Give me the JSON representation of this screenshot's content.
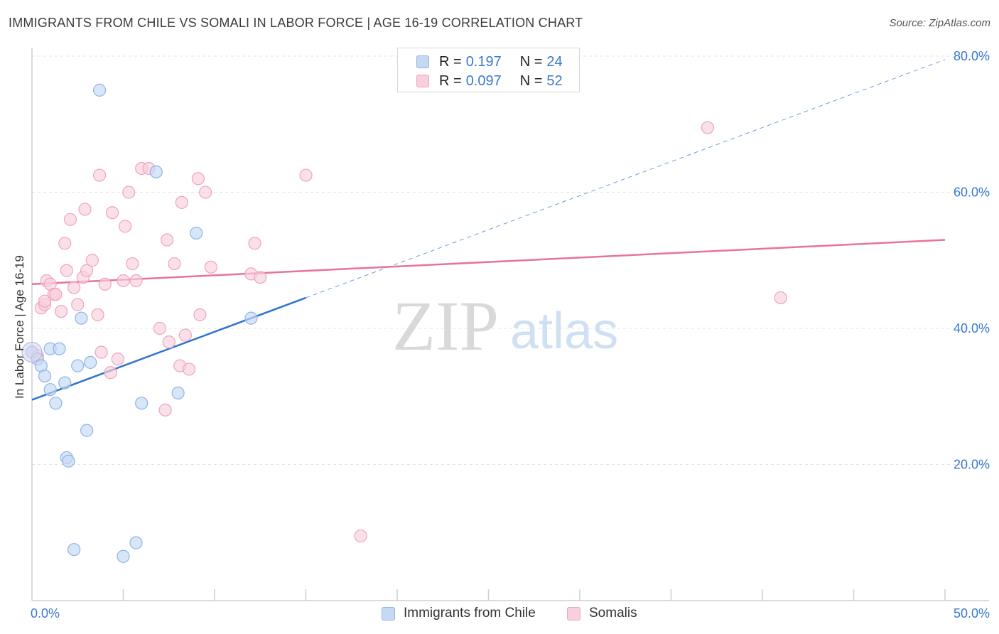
{
  "title": "IMMIGRANTS FROM CHILE VS SOMALI IN LABOR FORCE | AGE 16-19 CORRELATION CHART",
  "source": "Source: ZipAtlas.com",
  "watermark": {
    "zip": "ZIP",
    "atlas": "atlas"
  },
  "legend_top": [
    {
      "r_key": "R =",
      "r_value": "0.197",
      "n_key": "N =",
      "n_value": "24"
    },
    {
      "r_key": "R =",
      "r_value": "0.097",
      "n_key": "N =",
      "n_value": "52"
    }
  ],
  "chart_data": {
    "type": "scatter",
    "title": "IMMIGRANTS FROM CHILE VS SOMALI IN LABOR FORCE | AGE 16-19 CORRELATION CHART",
    "xlabel": "",
    "ylabel": "In Labor Force | Age 16-19",
    "xlim": [
      0,
      50
    ],
    "ylim": [
      0,
      80
    ],
    "x_tick_labels": [
      "0.0%",
      "50.0%"
    ],
    "y_ticks": [
      20,
      40,
      60,
      80
    ],
    "y_tick_labels": [
      "20.0%",
      "40.0%",
      "60.0%",
      "80.0%"
    ],
    "grid": true,
    "legend_position": "bottom-center",
    "series": [
      {
        "name": "Immigrants from Chile",
        "color": "#8db4e8",
        "fill": "#c5d9f3",
        "line_color": "#2f74d0",
        "r": 0.197,
        "n": 24,
        "trend": {
          "x0": 0,
          "y0": 29.5,
          "x1": 15,
          "y1": 44.5,
          "extended_to_x": 50,
          "extended_y": 79.5
        },
        "points": [
          [
            0.0,
            36.5
          ],
          [
            0.3,
            35.5
          ],
          [
            0.5,
            34.5
          ],
          [
            0.7,
            33.0
          ],
          [
            1.0,
            31.0
          ],
          [
            1.0,
            37.0
          ],
          [
            1.3,
            29.0
          ],
          [
            1.5,
            37.0
          ],
          [
            1.8,
            32.0
          ],
          [
            1.9,
            21.0
          ],
          [
            2.0,
            20.5
          ],
          [
            2.3,
            7.5
          ],
          [
            2.5,
            34.5
          ],
          [
            2.7,
            41.5
          ],
          [
            3.0,
            25.0
          ],
          [
            3.2,
            35.0
          ],
          [
            3.7,
            75.0
          ],
          [
            5.0,
            6.5
          ],
          [
            5.7,
            8.5
          ],
          [
            6.0,
            29.0
          ],
          [
            6.8,
            63.0
          ],
          [
            8.0,
            30.5
          ],
          [
            9.0,
            54.0
          ],
          [
            12.0,
            41.5
          ]
        ]
      },
      {
        "name": "Somalis",
        "color": "#f0a3bd",
        "fill": "#f8cfdd",
        "line_color": "#e8739a",
        "r": 0.097,
        "n": 52,
        "trend": {
          "x0": 0,
          "y0": 46.5,
          "x1": 50,
          "y1": 53.0
        },
        "points": [
          [
            0.3,
            36.0
          ],
          [
            0.5,
            43.0
          ],
          [
            0.7,
            43.5
          ],
          [
            0.7,
            44.0
          ],
          [
            0.8,
            47.0
          ],
          [
            1.0,
            46.5
          ],
          [
            1.2,
            45.0
          ],
          [
            1.3,
            45.0
          ],
          [
            1.6,
            42.5
          ],
          [
            1.8,
            52.5
          ],
          [
            1.9,
            48.5
          ],
          [
            2.1,
            56.0
          ],
          [
            2.3,
            46.0
          ],
          [
            2.5,
            43.5
          ],
          [
            2.8,
            47.5
          ],
          [
            2.9,
            57.5
          ],
          [
            3.0,
            48.5
          ],
          [
            3.3,
            50.0
          ],
          [
            3.6,
            42.0
          ],
          [
            3.7,
            62.5
          ],
          [
            3.8,
            36.5
          ],
          [
            4.0,
            46.5
          ],
          [
            4.3,
            33.5
          ],
          [
            4.4,
            57.0
          ],
          [
            4.7,
            35.5
          ],
          [
            5.0,
            47.0
          ],
          [
            5.1,
            55.0
          ],
          [
            5.3,
            60.0
          ],
          [
            5.5,
            49.5
          ],
          [
            5.7,
            47.0
          ],
          [
            6.0,
            63.5
          ],
          [
            6.4,
            63.5
          ],
          [
            7.0,
            40.0
          ],
          [
            7.3,
            28.0
          ],
          [
            7.4,
            53.0
          ],
          [
            7.5,
            38.0
          ],
          [
            7.8,
            49.5
          ],
          [
            8.1,
            34.5
          ],
          [
            8.2,
            58.5
          ],
          [
            8.4,
            39.0
          ],
          [
            8.6,
            34.0
          ],
          [
            9.1,
            62.0
          ],
          [
            9.2,
            42.0
          ],
          [
            9.5,
            60.0
          ],
          [
            9.8,
            49.0
          ],
          [
            12.0,
            48.0
          ],
          [
            12.2,
            52.5
          ],
          [
            12.5,
            47.5
          ],
          [
            15.0,
            62.5
          ],
          [
            18.0,
            9.5
          ],
          [
            37.0,
            69.5
          ],
          [
            41.0,
            44.5
          ]
        ]
      }
    ]
  }
}
